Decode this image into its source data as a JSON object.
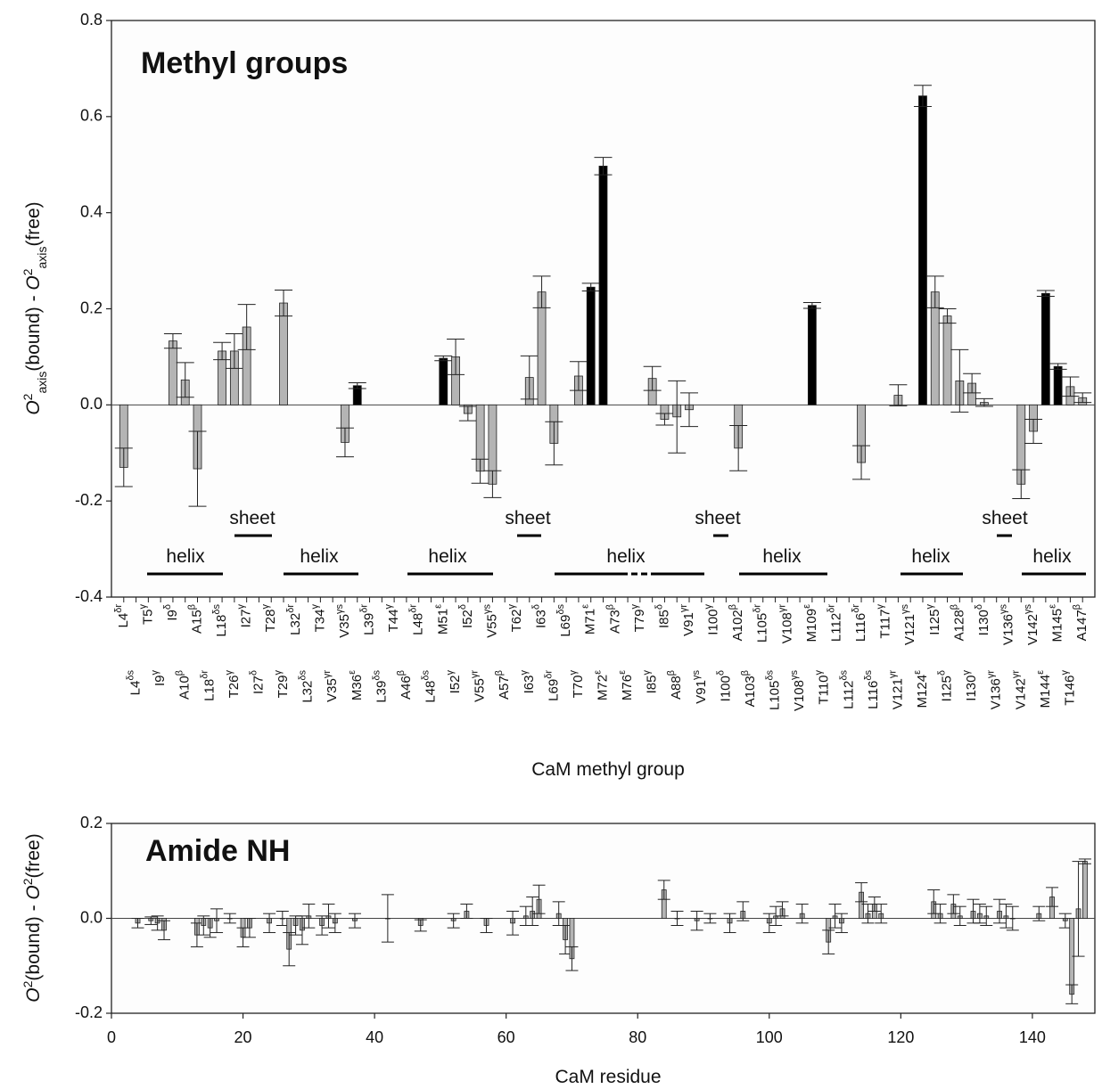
{
  "chart_data": [
    {
      "type": "bar",
      "title": "Methyl groups",
      "xlabel": "CaM methyl group",
      "ylabel": "O2axis(bound) - O2axis(free)",
      "categories": [
        "L4δr",
        "L4δs",
        "T5γ",
        "I9γ",
        "I9δ",
        "A10β",
        "A15β",
        "L18δr",
        "L18δs",
        "T26γ",
        "I27γ",
        "I27δ",
        "T28γ",
        "T29γ",
        "L32δr",
        "L32δs",
        "T34γ",
        "V35γr",
        "V35γs",
        "M36ε",
        "L39δr",
        "L39δs",
        "T44γ",
        "A46β",
        "L48δr",
        "L48δs",
        "M51ε",
        "I52γ",
        "I52δ",
        "V55γr",
        "V55γs",
        "A57β",
        "T62γ",
        "I63γ",
        "I63δ",
        "L69δr",
        "L69δs",
        "T70γ",
        "M71ε",
        "M72ε",
        "A73β",
        "M76ε",
        "T79γ",
        "I85γ",
        "I85δ",
        "A88β",
        "V91γr",
        "V91γs",
        "I100γ",
        "I100δ",
        "A102β",
        "A103β",
        "L105δr",
        "L105δs",
        "V108γr",
        "V108γs",
        "M109ε",
        "T110γ",
        "L112δr",
        "L112δs",
        "L116δr",
        "L116δs",
        "T117γ",
        "V121γr",
        "V121γs",
        "M124ε",
        "I125γ",
        "I125δ",
        "A128β",
        "I130γ",
        "I130δ",
        "V136γr",
        "V136γs",
        "V142γr",
        "V142γs",
        "M144ε",
        "M145ε",
        "T146γ",
        "A147β"
      ],
      "values": [
        -0.13,
        null,
        null,
        null,
        0.133,
        0.052,
        -0.133,
        null,
        0.112,
        0.112,
        0.162,
        null,
        null,
        0.212,
        null,
        null,
        null,
        null,
        -0.078,
        0.04,
        null,
        null,
        null,
        null,
        null,
        null,
        0.097,
        0.1,
        -0.018,
        -0.138,
        -0.165,
        null,
        null,
        0.057,
        0.235,
        -0.08,
        null,
        0.06,
        0.245,
        0.497,
        null,
        null,
        null,
        0.055,
        -0.03,
        -0.025,
        -0.01,
        null,
        null,
        null,
        -0.09,
        null,
        null,
        null,
        null,
        null,
        0.207,
        null,
        null,
        null,
        -0.12,
        null,
        null,
        0.02,
        null,
        0.643,
        0.235,
        0.185,
        0.05,
        0.045,
        0.005,
        null,
        null,
        -0.165,
        -0.055,
        0.232,
        0.08,
        0.038,
        0.015
      ],
      "errors": [
        0.04,
        null,
        null,
        null,
        0.015,
        0.036,
        0.078,
        null,
        0.018,
        0.036,
        0.047,
        null,
        null,
        0.027,
        null,
        null,
        null,
        null,
        0.03,
        0.006,
        null,
        null,
        null,
        null,
        null,
        null,
        0.005,
        0.037,
        0.015,
        0.025,
        0.028,
        null,
        null,
        0.045,
        0.033,
        0.045,
        null,
        0.03,
        0.008,
        0.018,
        null,
        null,
        null,
        0.025,
        0.012,
        0.075,
        0.035,
        null,
        null,
        null,
        0.047,
        null,
        null,
        null,
        null,
        null,
        0.006,
        null,
        null,
        null,
        0.035,
        null,
        null,
        0.022,
        null,
        0.022,
        0.033,
        0.015,
        0.065,
        0.02,
        0.008,
        null,
        null,
        0.03,
        0.025,
        0.006,
        0.006,
        0.02,
        0.01
      ],
      "colors": [
        "#b4b4b4",
        null,
        null,
        null,
        "#b4b4b4",
        "#b4b4b4",
        "#b4b4b4",
        null,
        "#b4b4b4",
        "#b4b4b4",
        "#b4b4b4",
        null,
        null,
        "#b4b4b4",
        null,
        null,
        null,
        null,
        "#b4b4b4",
        "#000000",
        null,
        null,
        null,
        null,
        null,
        null,
        "#000000",
        "#b4b4b4",
        "#b4b4b4",
        "#b4b4b4",
        "#b4b4b4",
        null,
        null,
        "#b4b4b4",
        "#b4b4b4",
        "#b4b4b4",
        null,
        "#b4b4b4",
        "#000000",
        "#000000",
        null,
        null,
        null,
        "#b4b4b4",
        "#b4b4b4",
        "#b4b4b4",
        "#b4b4b4",
        null,
        null,
        null,
        "#b4b4b4",
        null,
        null,
        null,
        null,
        null,
        "#000000",
        null,
        null,
        null,
        "#b4b4b4",
        null,
        null,
        "#b4b4b4",
        null,
        "#000000",
        "#b4b4b4",
        "#b4b4b4",
        "#b4b4b4",
        "#b4b4b4",
        "#b4b4b4",
        null,
        null,
        "#b4b4b4",
        "#b4b4b4",
        "#000000",
        "#000000",
        "#b4b4b4",
        "#b4b4b4"
      ],
      "ylim": [
        -0.4,
        0.8
      ],
      "yticks": [
        -0.4,
        -0.2,
        {
          "value": 0,
          "label": "0.0"
        },
        0.2,
        0.4,
        0.6,
        0.8
      ],
      "annotations": [
        "sheet",
        "helix",
        "helix",
        "helix",
        "sheet",
        "helix",
        "sheet",
        "helix",
        "helix",
        "sheet",
        "helix"
      ]
    },
    {
      "type": "bar",
      "title": "Amide NH",
      "xlabel": "CaM residue",
      "ylabel": "O2(bound) - O2(free)",
      "x": [
        4,
        6,
        7,
        8,
        13,
        14,
        15,
        16,
        18,
        20,
        21,
        24,
        26,
        27,
        28,
        29,
        30,
        32,
        33,
        34,
        37,
        42,
        47,
        52,
        54,
        57,
        61,
        63,
        64,
        65,
        68,
        69,
        70,
        84,
        86,
        89,
        91,
        94,
        96,
        100,
        101,
        102,
        105,
        109,
        110,
        111,
        114,
        115,
        116,
        117,
        125,
        126,
        128,
        129,
        131,
        132,
        133,
        135,
        136,
        137,
        141,
        143,
        145,
        146,
        147,
        148
      ],
      "values": [
        -0.01,
        -0.005,
        -0.01,
        -0.025,
        -0.035,
        -0.015,
        -0.02,
        -0.005,
        0,
        -0.04,
        -0.02,
        -0.01,
        0,
        -0.065,
        -0.015,
        -0.025,
        0.005,
        -0.015,
        0.005,
        -0.01,
        -0.005,
        0,
        -0.015,
        -0.005,
        0.015,
        -0.015,
        -0.01,
        0.005,
        0.015,
        0.04,
        0.01,
        -0.045,
        -0.085,
        0.06,
        0,
        -0.005,
        0,
        -0.01,
        0.015,
        -0.01,
        0.005,
        0.02,
        0.01,
        -0.05,
        0.005,
        -0.01,
        0.055,
        0.01,
        0.03,
        0.01,
        0.035,
        0.01,
        0.03,
        0.005,
        0.015,
        0.01,
        0.005,
        0.015,
        0.005,
        0,
        0.01,
        0.045,
        -0.005,
        -0.16,
        0.02,
        0.12
      ],
      "errors": [
        0.01,
        0.008,
        0.015,
        0.02,
        0.025,
        0.02,
        0.02,
        0.025,
        0.01,
        0.02,
        0.02,
        0.02,
        0.015,
        0.035,
        0.02,
        0.03,
        0.025,
        0.02,
        0.025,
        0.02,
        0.015,
        0.05,
        0.012,
        0.015,
        0.015,
        0.015,
        0.025,
        0.02,
        0.03,
        0.03,
        0.025,
        0.03,
        0.025,
        0.02,
        0.015,
        0.02,
        0.01,
        0.02,
        0.02,
        0.02,
        0.02,
        0.015,
        0.02,
        0.025,
        0.025,
        0.02,
        0.02,
        0.02,
        0.015,
        0.02,
        0.025,
        0.02,
        0.02,
        0.02,
        0.025,
        0.02,
        0.02,
        0.025,
        0.025,
        0.025,
        0.015,
        0.02,
        0.015,
        0.02,
        0.1,
        0.005
      ],
      "color": "#b4b4b4",
      "xlim": [
        0,
        149.5
      ],
      "xticks": [
        0,
        20,
        40,
        60,
        80,
        100,
        120,
        140
      ],
      "ylim": [
        -0.2,
        0.2
      ],
      "yticks": [
        -0.2,
        {
          "value": 0,
          "label": "0.0"
        },
        0.2
      ]
    }
  ]
}
